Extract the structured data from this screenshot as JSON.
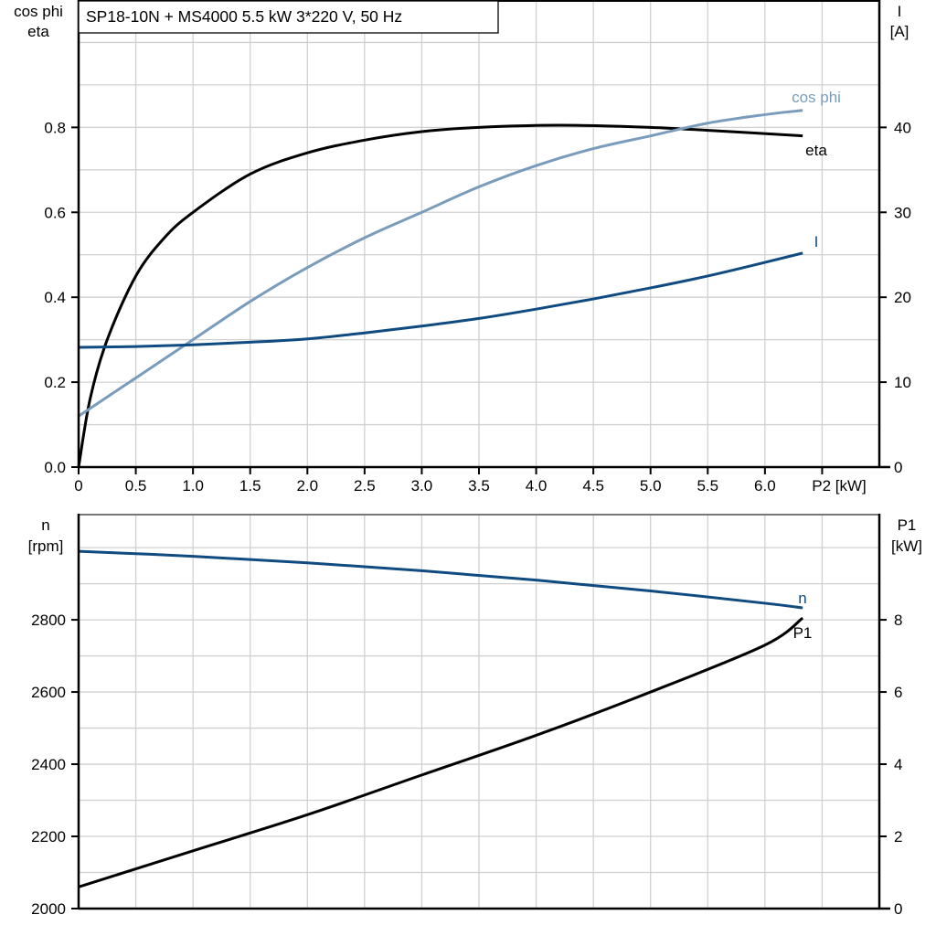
{
  "title": "SP18-10N + MS4000   5.5 kW   3*220 V, 50 Hz",
  "colors": {
    "eta": "#000000",
    "cos_phi": "#7a9cbc",
    "I": "#0f4a80",
    "n": "#0f4a80",
    "P1": "#000000",
    "grid": "#d0d0d0"
  },
  "chart_data": [
    {
      "type": "line",
      "xlabel": "P2 [kW]",
      "ylabel_left": [
        "cos phi",
        "eta"
      ],
      "ylabel_right": [
        "I",
        "[A]"
      ],
      "xlim": [
        0,
        7
      ],
      "ylim_left": [
        0,
        1.1
      ],
      "ylim_right": [
        0,
        55
      ],
      "x_ticks": [
        "0",
        "0.5",
        "1.0",
        "1.5",
        "2.0",
        "2.5",
        "3.0",
        "3.5",
        "4.0",
        "4.5",
        "5.0",
        "5.5",
        "6.0"
      ],
      "y_ticks_left": [
        "0.0",
        "0.2",
        "0.4",
        "0.6",
        "0.8"
      ],
      "y_ticks_right": [
        "0",
        "10",
        "20",
        "30",
        "40"
      ],
      "grid": true,
      "series": [
        {
          "name": "eta",
          "axis": "left",
          "x": [
            0,
            0.1,
            0.25,
            0.5,
            0.75,
            1.0,
            1.5,
            2.0,
            2.5,
            3.0,
            3.5,
            4.2,
            5.0,
            5.7,
            6.33
          ],
          "y": [
            0,
            0.16,
            0.3,
            0.45,
            0.54,
            0.6,
            0.69,
            0.74,
            0.77,
            0.79,
            0.8,
            0.805,
            0.8,
            0.79,
            0.78
          ]
        },
        {
          "name": "cos phi",
          "axis": "left",
          "x": [
            0,
            0.5,
            1.0,
            1.5,
            2.0,
            2.5,
            3.0,
            3.5,
            4.0,
            4.5,
            5.0,
            5.5,
            6.0,
            6.33
          ],
          "y": [
            0.12,
            0.21,
            0.3,
            0.39,
            0.47,
            0.54,
            0.6,
            0.66,
            0.71,
            0.75,
            0.78,
            0.81,
            0.83,
            0.84
          ]
        },
        {
          "name": "I",
          "axis": "right",
          "x": [
            0,
            0.5,
            1.0,
            1.5,
            2.0,
            2.5,
            3.0,
            3.5,
            4.0,
            4.5,
            5.0,
            5.5,
            6.0,
            6.33
          ],
          "y": [
            14.1,
            14.2,
            14.4,
            14.7,
            15.1,
            15.8,
            16.6,
            17.5,
            18.6,
            19.8,
            21.1,
            22.5,
            24.1,
            25.2
          ]
        }
      ]
    },
    {
      "type": "line",
      "ylabel_left": [
        "n",
        "[rpm]"
      ],
      "ylabel_right": [
        "P1",
        "[kW]"
      ],
      "xlim": [
        0,
        7
      ],
      "ylim_left": [
        2000,
        3094
      ],
      "ylim_right": [
        0,
        10.94
      ],
      "y_ticks_left": [
        "2000",
        "2200",
        "2400",
        "2600",
        "2800"
      ],
      "y_ticks_right": [
        "0",
        "2",
        "4",
        "6",
        "8"
      ],
      "grid": true,
      "series": [
        {
          "name": "n",
          "axis": "left",
          "x": [
            0,
            1,
            2,
            3,
            4,
            5,
            6,
            6.33
          ],
          "y": [
            2990,
            2976,
            2958,
            2936,
            2910,
            2880,
            2846,
            2833
          ]
        },
        {
          "name": "P1",
          "axis": "right",
          "x": [
            0,
            1,
            2,
            3,
            4,
            5,
            6,
            6.33
          ],
          "y": [
            0.6,
            1.6,
            2.6,
            3.7,
            4.8,
            6.0,
            7.3,
            8.05
          ]
        }
      ]
    }
  ]
}
